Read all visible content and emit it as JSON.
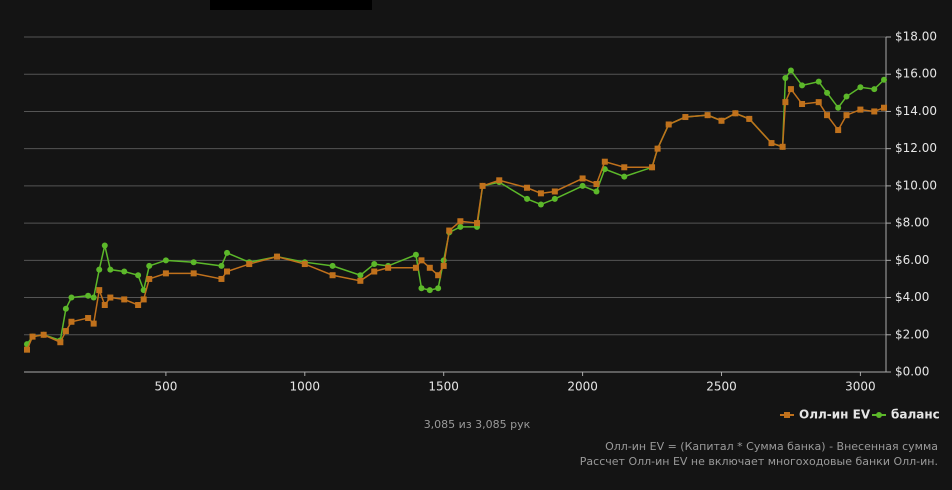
{
  "chart_data": {
    "type": "line",
    "x": [
      0,
      20,
      60,
      120,
      140,
      160,
      220,
      240,
      260,
      280,
      300,
      350,
      400,
      420,
      440,
      500,
      600,
      700,
      720,
      800,
      900,
      1000,
      1100,
      1200,
      1250,
      1300,
      1400,
      1420,
      1450,
      1480,
      1500,
      1520,
      1560,
      1620,
      1640,
      1700,
      1800,
      1850,
      1900,
      2000,
      2050,
      2080,
      2150,
      2250,
      2270,
      2310,
      2370,
      2450,
      2500,
      2550,
      2600,
      2680,
      2720,
      2730,
      2750,
      2790,
      2850,
      2880,
      2920,
      2950,
      3000,
      3050,
      3085
    ],
    "series": [
      {
        "name": "Олл-ин EV",
        "color": "#c0711c",
        "values": [
          1.2,
          1.9,
          2.0,
          1.6,
          2.2,
          2.7,
          2.9,
          2.6,
          4.4,
          3.6,
          4.0,
          3.9,
          3.6,
          3.9,
          5.0,
          5.3,
          5.3,
          5.0,
          5.4,
          5.8,
          6.2,
          5.8,
          5.2,
          4.9,
          5.4,
          5.6,
          5.6,
          6.0,
          5.6,
          5.2,
          5.7,
          7.6,
          8.1,
          8.0,
          10.0,
          10.3,
          9.9,
          9.6,
          9.7,
          10.4,
          10.1,
          11.3,
          11.0,
          11.0,
          12.0,
          13.3,
          13.7,
          13.8,
          13.5,
          13.9,
          13.6,
          12.3,
          12.1,
          14.5,
          15.2,
          14.4,
          14.5,
          13.8,
          13.0,
          13.8,
          14.1,
          14.0,
          14.2
        ]
      },
      {
        "name": "баланс",
        "color": "#5cb82a",
        "values": [
          1.5,
          1.9,
          2.0,
          1.7,
          3.4,
          4.0,
          4.1,
          4.0,
          5.5,
          6.8,
          5.5,
          5.4,
          5.2,
          4.4,
          5.7,
          6.0,
          5.9,
          5.7,
          6.4,
          5.9,
          6.2,
          5.9,
          5.7,
          5.2,
          5.8,
          5.7,
          6.3,
          4.5,
          4.4,
          4.5,
          6.0,
          7.5,
          7.8,
          7.8,
          10.0,
          10.2,
          9.3,
          9.0,
          9.3,
          10.0,
          9.7,
          10.9,
          10.5,
          11.0,
          12.0,
          13.3,
          13.7,
          13.8,
          13.5,
          13.9,
          13.6,
          12.3,
          12.1,
          15.8,
          16.2,
          15.4,
          15.6,
          15.0,
          14.2,
          14.8,
          15.3,
          15.2,
          15.7
        ]
      }
    ],
    "xlim": [
      0,
      3085
    ],
    "xticks": [
      500,
      1000,
      1500,
      2000,
      2500,
      3000
    ],
    "ylim": [
      0,
      18
    ],
    "yticks": [
      {
        "value": 0,
        "label": "$0.00"
      },
      {
        "value": 2,
        "label": "$2.00"
      },
      {
        "value": 4,
        "label": "$4.00"
      },
      {
        "value": 6,
        "label": "$6.00"
      },
      {
        "value": 8,
        "label": "$8.00"
      },
      {
        "value": 10,
        "label": "$10.00"
      },
      {
        "value": 12,
        "label": "$12.00"
      },
      {
        "value": 14,
        "label": "$14.00"
      },
      {
        "value": 16,
        "label": "$16.00"
      },
      {
        "value": 18,
        "label": "$18.00"
      }
    ],
    "grid": true,
    "hands_caption": "3,085 из 3,085 рук",
    "notes": [
      "Олл-ин EV = (Капитал * Сумма банка) - Внесенная сумма",
      "Рассчет Олл-ин EV не включает многоходовые банки Олл-ин."
    ]
  }
}
